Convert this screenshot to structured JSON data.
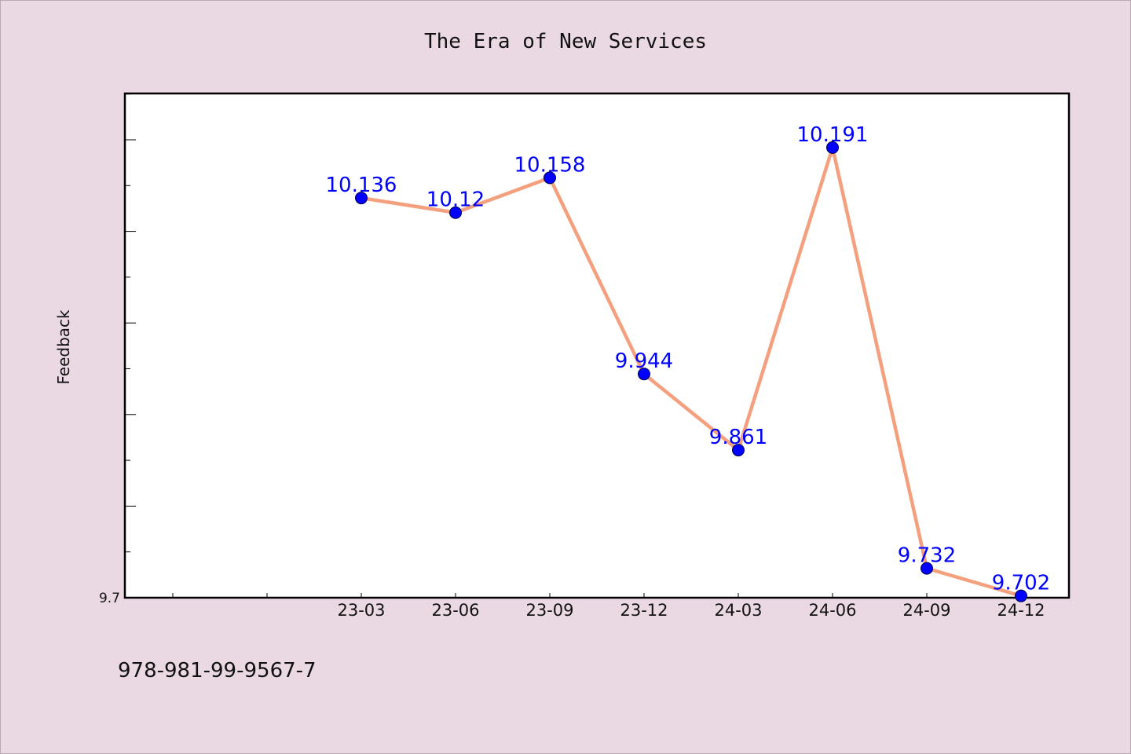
{
  "chart_data": {
    "type": "line",
    "title": "The Era of New Services",
    "xlabel": "",
    "ylabel": "Feedback",
    "categories": [
      "23-03",
      "23-06",
      "23-09",
      "23-12",
      "24-03",
      "24-06",
      "24-09",
      "24-12"
    ],
    "series": [
      {
        "values": [
          10.136,
          10.12,
          10.158,
          9.944,
          9.861,
          10.191,
          9.732,
          9.702
        ]
      }
    ],
    "data_labels": [
      "10.136",
      "10.12",
      "10.158",
      "9.944",
      "9.861",
      "10.191",
      "9.732",
      "9.702"
    ],
    "ylim": [
      9.7,
      10.25
    ],
    "y_tick_labels": [
      "9.7"
    ],
    "grid": false,
    "line_color": "#f4a07e",
    "marker_color": "#0000ff",
    "label_color": "#0000ff",
    "plot_background": "#ffffff",
    "page_background": "#ead9e2"
  },
  "footer_text": "978-981-99-9567-7"
}
